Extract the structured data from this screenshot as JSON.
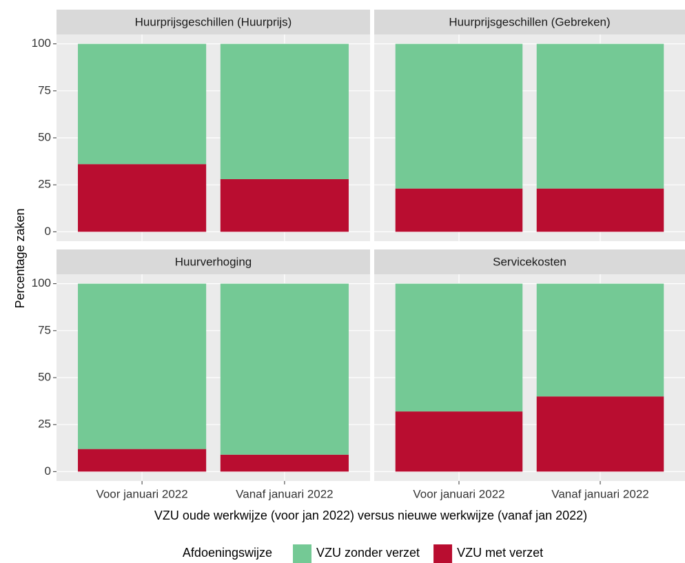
{
  "x_label": "VZU oude werkwijze (voor jan 2022) versus nieuwe werkwijze (vanaf jan 2022)",
  "y_label": "Percentage zaken",
  "legend_title": "Afdoeningswijze",
  "chart_data": [
    {
      "type": "stacked_bar",
      "title": "Huurprijsgeschillen (Huurprijs)",
      "categories": [
        "Voor januari 2022",
        "Vanaf januari 2022"
      ],
      "series": [
        {
          "name": "VZU zonder verzet",
          "color": "#74c995",
          "values": [
            64,
            72
          ]
        },
        {
          "name": "VZU met verzet",
          "color": "#b90d30",
          "values": [
            36,
            28
          ]
        }
      ],
      "ylim": [
        -5,
        105
      ],
      "yticks": [
        0,
        25,
        50,
        75,
        100
      ],
      "grid": true
    },
    {
      "type": "stacked_bar",
      "title": "Huurprijsgeschillen (Gebreken)",
      "categories": [
        "Voor januari 2022",
        "Vanaf januari 2022"
      ],
      "series": [
        {
          "name": "VZU zonder verzet",
          "color": "#74c995",
          "values": [
            77,
            77
          ]
        },
        {
          "name": "VZU met verzet",
          "color": "#b90d30",
          "values": [
            23,
            23
          ]
        }
      ],
      "ylim": [
        -5,
        105
      ],
      "yticks": [
        0,
        25,
        50,
        75,
        100
      ],
      "grid": true
    },
    {
      "type": "stacked_bar",
      "title": "Huurverhoging",
      "categories": [
        "Voor januari 2022",
        "Vanaf januari 2022"
      ],
      "series": [
        {
          "name": "VZU zonder verzet",
          "color": "#74c995",
          "values": [
            88,
            91
          ]
        },
        {
          "name": "VZU met verzet",
          "color": "#b90d30",
          "values": [
            12,
            9
          ]
        }
      ],
      "ylim": [
        -5,
        105
      ],
      "yticks": [
        0,
        25,
        50,
        75,
        100
      ],
      "grid": true
    },
    {
      "type": "stacked_bar",
      "title": "Servicekosten",
      "categories": [
        "Voor januari 2022",
        "Vanaf januari 2022"
      ],
      "series": [
        {
          "name": "VZU zonder verzet",
          "color": "#74c995",
          "values": [
            68,
            60
          ]
        },
        {
          "name": "VZU met verzet",
          "color": "#b90d30",
          "values": [
            32,
            40
          ]
        }
      ],
      "ylim": [
        -5,
        105
      ],
      "yticks": [
        0,
        25,
        50,
        75,
        100
      ],
      "grid": true
    }
  ]
}
